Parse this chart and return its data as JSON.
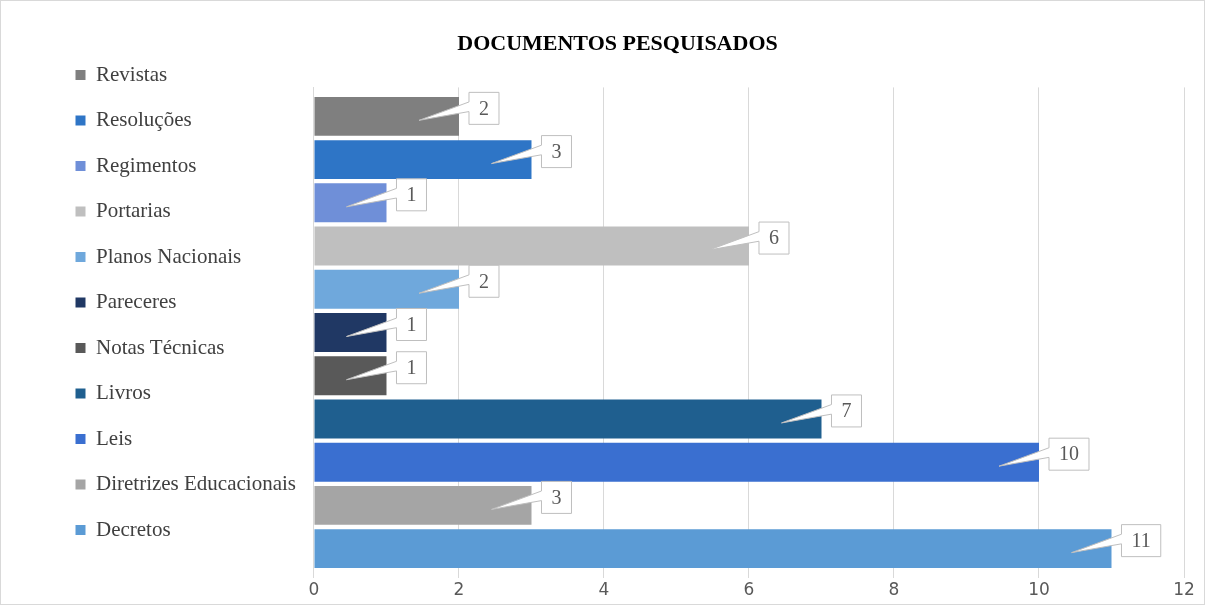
{
  "chart_data": {
    "type": "bar",
    "title": "DOCUMENTOS PESQUISADOS",
    "orientation": "horizontal",
    "categories": [
      null
    ],
    "series": [
      {
        "name": "Revistas",
        "color": "#7f7f7f",
        "values": [
          2
        ]
      },
      {
        "name": "Resoluções",
        "color": "#2e75c6",
        "values": [
          3
        ]
      },
      {
        "name": "Regimentos",
        "color": "#6f8fd8",
        "values": [
          1
        ]
      },
      {
        "name": "Portarias",
        "color": "#bfbfbf",
        "values": [
          6
        ]
      },
      {
        "name": "Planos Nacionais",
        "color": "#6fa8dc",
        "values": [
          2
        ]
      },
      {
        "name": "Pareceres",
        "color": "#203864",
        "values": [
          1
        ]
      },
      {
        "name": "Notas Técnicas",
        "color": "#595959",
        "values": [
          1
        ]
      },
      {
        "name": "Livros",
        "color": "#1f5f8f",
        "values": [
          7
        ]
      },
      {
        "name": "Leis",
        "color": "#3a6fd0",
        "values": [
          10
        ]
      },
      {
        "name": "Diretrizes Educacionais",
        "color": "#a5a5a5",
        "values": [
          3
        ]
      },
      {
        "name": "Decretos",
        "color": "#5b9bd5",
        "values": [
          11
        ]
      }
    ],
    "xlim": [
      0,
      12
    ],
    "xticks": [
      0,
      2,
      4,
      6,
      8,
      10,
      12
    ],
    "grid": "x",
    "legend": "left",
    "data_labels": true
  }
}
